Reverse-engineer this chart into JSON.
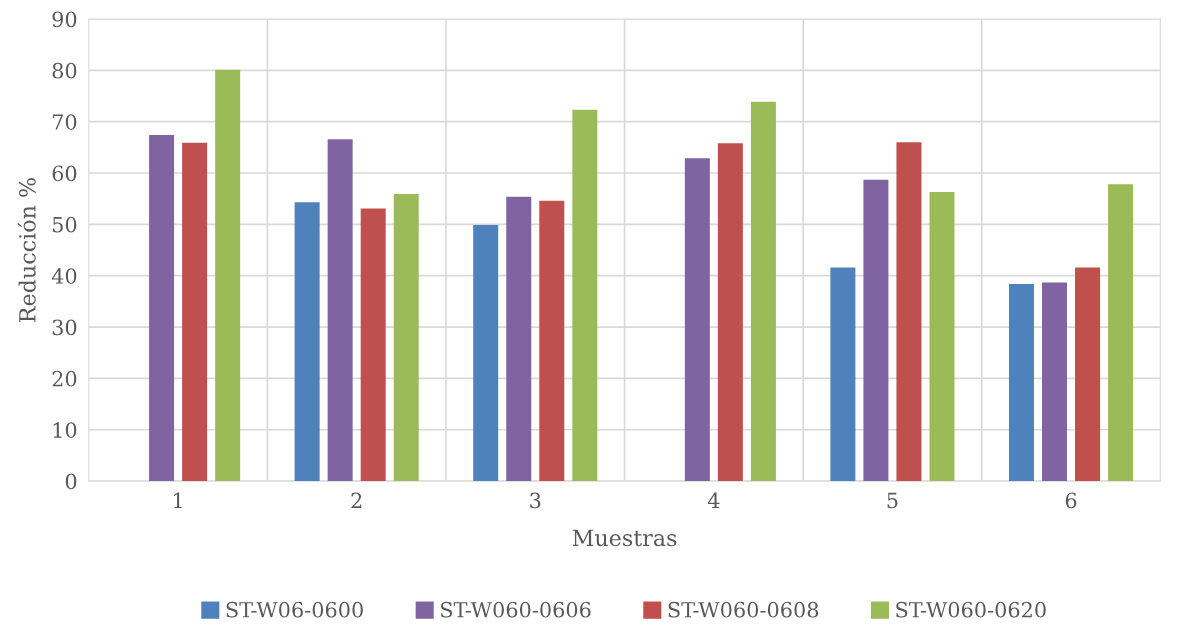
{
  "chart_data": {
    "type": "bar",
    "xlabel": "Muestras",
    "ylabel": "Reducción %",
    "categories": [
      "1",
      "2",
      "3",
      "4",
      "5",
      "6"
    ],
    "series": [
      {
        "name": "ST-W06-0600",
        "color": "#4f81bd",
        "values": [
          null,
          54.3,
          49.9,
          null,
          41.6,
          38.4
        ]
      },
      {
        "name": "ST-W060-0606",
        "color": "#8064a2",
        "values": [
          67.4,
          66.6,
          55.4,
          62.9,
          58.7,
          38.7
        ]
      },
      {
        "name": "ST-W060-0608",
        "color": "#c0504d",
        "values": [
          65.9,
          53.1,
          54.6,
          65.8,
          66.0,
          41.6
        ]
      },
      {
        "name": "ST-W060-0620",
        "color": "#9bbb59",
        "values": [
          80.1,
          55.9,
          72.3,
          73.9,
          56.3,
          57.8
        ]
      }
    ],
    "ylim": [
      0,
      90
    ],
    "yticks": [
      0,
      10,
      20,
      30,
      40,
      50,
      60,
      70,
      80,
      90
    ],
    "grid": true,
    "legend": "bottom"
  }
}
